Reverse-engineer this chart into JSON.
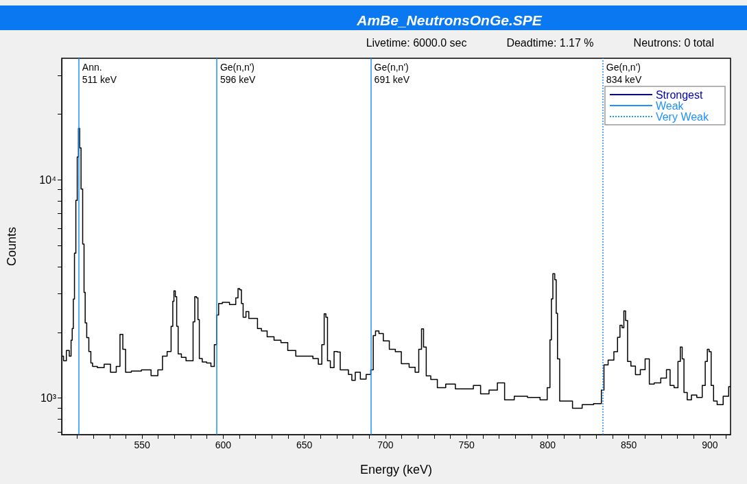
{
  "chart_data": {
    "type": "step",
    "title": "AmBe_NeutronsOnGe.SPE",
    "xlabel": "Energy (keV)",
    "ylabel": "Counts",
    "annotations": [
      "Livetime: 6000.0 sec",
      "Deadtime: 1.17 %",
      "Neutrons: 0 total"
    ],
    "xlim": [
      500.5,
      912.7
    ],
    "xticks": [
      {
        "value": 510,
        "label": null
      },
      {
        "value": 520,
        "label": null
      },
      {
        "value": 530,
        "label": null
      },
      {
        "value": 540,
        "label": null
      },
      550,
      {
        "value": 560,
        "label": null
      },
      {
        "value": 570,
        "label": null
      },
      {
        "value": 580,
        "label": null
      },
      {
        "value": 590,
        "label": null
      },
      600,
      {
        "value": 610,
        "label": null
      },
      {
        "value": 620,
        "label": null
      },
      {
        "value": 630,
        "label": null
      },
      {
        "value": 640,
        "label": null
      },
      650,
      {
        "value": 660,
        "label": null
      },
      {
        "value": 670,
        "label": null
      },
      {
        "value": 680,
        "label": null
      },
      {
        "value": 690,
        "label": null
      },
      700,
      {
        "value": 710,
        "label": null
      },
      {
        "value": 720,
        "label": null
      },
      {
        "value": 730,
        "label": null
      },
      {
        "value": 740,
        "label": null
      },
      750,
      {
        "value": 760,
        "label": null
      },
      {
        "value": 770,
        "label": null
      },
      {
        "value": 780,
        "label": null
      },
      {
        "value": 790,
        "label": null
      },
      800,
      {
        "value": 810,
        "label": null
      },
      {
        "value": 820,
        "label": null
      },
      {
        "value": 830,
        "label": null
      },
      {
        "value": 840,
        "label": null
      },
      850,
      {
        "value": 860,
        "label": null
      },
      {
        "value": 870,
        "label": null
      },
      {
        "value": 880,
        "label": null
      },
      {
        "value": 890,
        "label": null
      },
      900,
      {
        "value": 910,
        "label": null
      }
    ],
    "ylim": [
      680,
      36000
    ],
    "log": "y",
    "yticks": [
      {
        "value": 700,
        "label": null
      },
      {
        "value": 800,
        "label": null
      },
      {
        "value": 900,
        "label": null
      },
      {
        "value": 1000,
        "label": "10³"
      },
      {
        "value": 2000,
        "label": null
      },
      {
        "value": 3000,
        "label": null
      },
      {
        "value": 4000,
        "label": null
      },
      {
        "value": 5000,
        "label": null
      },
      {
        "value": 6000,
        "label": null
      },
      {
        "value": 7000,
        "label": null
      },
      {
        "value": 8000,
        "label": null
      },
      {
        "value": 9000,
        "label": null
      },
      {
        "value": 10000,
        "label": "10⁴"
      },
      {
        "value": 20000,
        "label": null
      },
      {
        "value": 30000,
        "label": null
      }
    ],
    "grid": false,
    "legend": "top right",
    "marker": "none",
    "series": [
      {
        "color": "#000000",
        "x": [
          500.9,
          502.3,
          504.4,
          505.9,
          506.6,
          507.3,
          508.0,
          508.7,
          509.7,
          510.4,
          511.2,
          511.9,
          512.9,
          513.9,
          514.6,
          515.3,
          516.5,
          517.9,
          519.0,
          520.0,
          524.9,
          528.4,
          532.7,
          535.5,
          537.3,
          539.0,
          540.7,
          546.1,
          553.1,
          558.0,
          561.5,
          563.7,
          567.2,
          568.6,
          569.3,
          570.0,
          571.0,
          571.7,
          572.8,
          575.7,
          578.5,
          580.9,
          582.0,
          583.0,
          584.1,
          584.8,
          585.8,
          588.4,
          591.2,
          593.7,
          595.4,
          596.5,
          597.9,
          601.1,
          606.7,
          608.8,
          609.5,
          610.9,
          611.6,
          613.0,
          615.1,
          616.5,
          620.1,
          622.2,
          625.0,
          629.2,
          633.5,
          637.7,
          641.9,
          647.6,
          653.2,
          657.4,
          659.9,
          661.7,
          662.8,
          663.8,
          664.8,
          667.3,
          669.4,
          671.3,
          673.0,
          675.8,
          678.6,
          680.0,
          682.8,
          686.3,
          689.9,
          692.0,
          693.0,
          694.8,
          697.2,
          700.2,
          704.6,
          707.6,
          712.0,
          717.2,
          719.4,
          721.7,
          722.8,
          724.2,
          726.1,
          729.8,
          734.2,
          740.1,
          746.1,
          752.0,
          756.4,
          760.9,
          766.8,
          771.2,
          775.7,
          783.1,
          792.0,
          798.6,
          800.8,
          802.0,
          802.6,
          803.8,
          804.9,
          805.6,
          806.5,
          808.3,
          812.7,
          817.9,
          824.6,
          832.0,
          834.2,
          835.2,
          839.3,
          842.3,
          843.8,
          845.3,
          846.4,
          847.5,
          848.5,
          850.0,
          852.6,
          855.6,
          858.6,
          861.5,
          863.8,
          867.5,
          871.9,
          874.5,
          876.4,
          879.4,
          881.2,
          882.3,
          883.5,
          884.5,
          887.5,
          889.7,
          894.1,
          896.4,
          897.8,
          899.0,
          900.0,
          901.5,
          903.0,
          905.9,
          910.4,
          912.7
        ],
        "values": [
          1556,
          1482,
          1652,
          1556,
          1842,
          2080,
          2842,
          4610,
          8040,
          12700,
          17200,
          14000,
          9060,
          5070,
          3050,
          2210,
          1890,
          1634,
          1447,
          1396,
          1378,
          1430,
          1314,
          1396,
          1959,
          1672,
          1314,
          1330,
          1346,
          1267,
          1346,
          1556,
          1634,
          2130,
          2774,
          3096,
          2913,
          2130,
          1593,
          1536,
          1482,
          1482,
          2234,
          2913,
          2878,
          2287,
          1517,
          1462,
          1447,
          1396,
          1755,
          2403,
          2710,
          2743,
          2679,
          2878,
          3170,
          3133,
          2710,
          2345,
          2490,
          2316,
          2316,
          2080,
          2028,
          1910,
          1842,
          1796,
          1652,
          1556,
          1556,
          1517,
          1430,
          1755,
          2432,
          2345,
          1482,
          1378,
          1634,
          1624,
          1346,
          1346,
          1282,
          1207,
          1314,
          1222,
          1282,
          1346,
          1932,
          2028,
          1977,
          1827,
          1672,
          1630,
          1436,
          1383,
          1314,
          1672,
          2073,
          1714,
          1265,
          1218,
          1115,
          1158,
          1101,
          1101,
          1143,
          1046,
          1087,
          1173,
          982,
          1020,
          1007,
          982,
          1115,
          1849,
          2845,
          3715,
          3486,
          2445,
          1511,
          969,
          969,
          898,
          933,
          944,
          1087,
          1418,
          1493,
          1630,
          1898,
          2154,
          2099,
          2508,
          2266,
          1472,
          1400,
          1281,
          1348,
          1511,
          1158,
          1173,
          1234,
          1348,
          1143,
          1115,
          1472,
          1714,
          1511,
          1060,
          982,
          1033,
          1007,
          1143,
          1472,
          1672,
          1630,
          1143,
          969,
          933,
          1020,
          1128
        ]
      },
      {
        "name": "Strongest",
        "type": "line",
        "color": "#0000b0",
        "line_style": "solid"
      },
      {
        "name": "Weak",
        "type": "line",
        "color": "#1e90ff",
        "line_style": "solid"
      },
      {
        "name": "Very Weak",
        "type": "line",
        "color": "#1e90ff",
        "line_style": "dotted"
      }
    ],
    "ref_lines": [
      {
        "axis": "x",
        "value": 511,
        "label": "Ann.\n511 keV",
        "color": "#1e90ff",
        "line_style": "solid"
      },
      {
        "axis": "x",
        "value": 596,
        "label": "Ge(n,n')\n596 keV",
        "color": "#1e90ff",
        "line_style": "solid"
      },
      {
        "axis": "x",
        "value": 691,
        "label": "Ge(n,n')\n691 keV",
        "color": "#1e90ff",
        "line_style": "solid"
      },
      {
        "axis": "x",
        "value": 834,
        "label": "Ge(n,n')\n834 keV",
        "color": "#1e90ff",
        "line_style": "dotted"
      }
    ]
  }
}
